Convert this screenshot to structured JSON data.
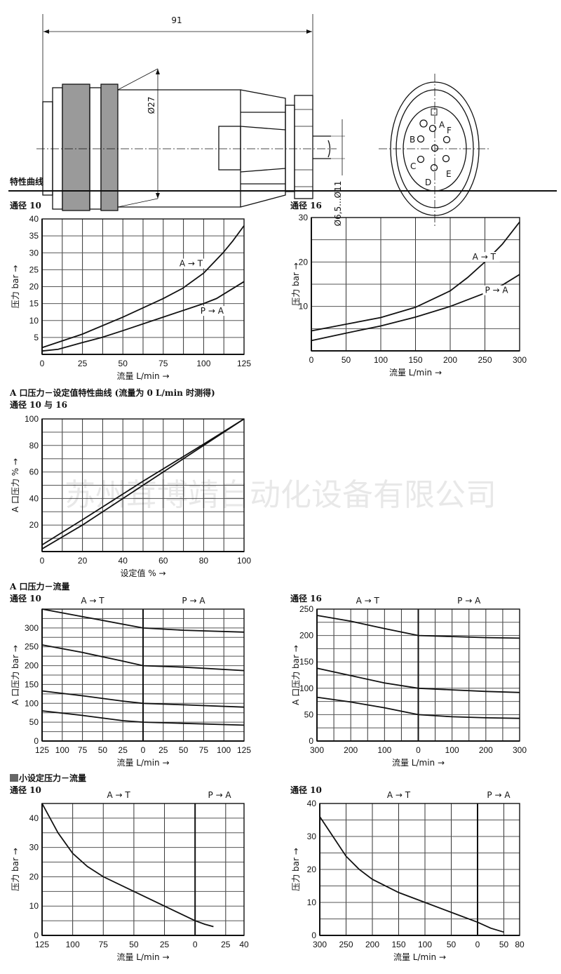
{
  "drawing": {
    "length_dim": "91",
    "diameter_dim": "Ø27",
    "cable_dim": "Ø6,5...Ø11",
    "pins": [
      "A",
      "B",
      "C",
      "D",
      "E",
      "F"
    ]
  },
  "section_title": "特性曲线",
  "headings": {
    "chart1": "通径 10",
    "chart2": "通径 16",
    "setpoint_title": "A 口压力－设定值特性曲线 (流量为 0 L/min 时测得)",
    "setpoint_sub": "通径 10 与 16",
    "pressure_flow_title": "A 口压力－流量",
    "chart4": "通径 10",
    "chart5": "通径 16",
    "min_title": "小设定压力－流量",
    "chart6": "通径 10",
    "chart7": "通径 10"
  },
  "watermark": "苏州茸博靖自动化设备有限公司",
  "colors": {
    "line": "#111111",
    "grid": "#333333",
    "watermark": "#cccccc"
  },
  "chart_data": [
    {
      "type": "line",
      "title": "通径 10",
      "xlabel": "流量 L/min →",
      "ylabel": "压力 bar →",
      "xlim": [
        0,
        125
      ],
      "ylim": [
        0,
        40
      ],
      "grid": true,
      "xticks": [
        0,
        25,
        50,
        75,
        100,
        125
      ],
      "xtick_labels": [
        "0",
        "25",
        "50",
        "75",
        "100",
        "125"
      ],
      "yticks": [
        5,
        10,
        15,
        20,
        25,
        30,
        35,
        40
      ],
      "ytick_labels": [
        "5",
        "10",
        "15",
        "20",
        "25",
        "30",
        "35",
        "40"
      ],
      "series": [
        {
          "name": "A → T",
          "x": [
            0,
            25,
            50,
            75,
            87,
            100,
            112,
            118,
            125
          ],
          "y": [
            2,
            6,
            11,
            16.5,
            19.5,
            24,
            30,
            33.5,
            38
          ]
        },
        {
          "name": "P → A",
          "x": [
            0,
            10,
            25,
            37,
            50,
            75,
            100,
            108,
            125
          ],
          "y": [
            1,
            1.5,
            3.5,
            5,
            7,
            11,
            15,
            16.5,
            21.5
          ]
        }
      ]
    },
    {
      "type": "line",
      "title": "通径 16",
      "xlabel": "流量 L/min →",
      "ylabel": "压力 bar →",
      "xlim": [
        0,
        300
      ],
      "ylim": [
        0,
        30
      ],
      "grid": true,
      "xticks": [
        0,
        50,
        100,
        150,
        200,
        250,
        300
      ],
      "xtick_labels": [
        "0",
        "50",
        "100",
        "150",
        "200",
        "250",
        "300"
      ],
      "yticks": [
        10,
        20,
        30
      ],
      "ytick_labels": [
        "10",
        "20",
        "30"
      ],
      "series": [
        {
          "name": "A → T",
          "x": [
            0,
            50,
            100,
            150,
            200,
            225,
            250,
            275,
            300
          ],
          "y": [
            4.5,
            6,
            7.5,
            9.8,
            13.5,
            16.5,
            20,
            24,
            29
          ]
        },
        {
          "name": "P → A",
          "x": [
            0,
            50,
            100,
            150,
            200,
            250,
            275,
            300
          ],
          "y": [
            2.3,
            4,
            5.6,
            7.6,
            10,
            13,
            14.8,
            17.2
          ]
        }
      ]
    },
    {
      "type": "line",
      "title": "A 口压力－设定值特性曲线 (流量为 0 L/min 时测得)",
      "xlabel": "设定值 % →",
      "ylabel": "A 口压力 % →",
      "xlim": [
        0,
        100
      ],
      "ylim": [
        0,
        100
      ],
      "grid": true,
      "xticks": [
        0,
        20,
        40,
        60,
        80,
        100
      ],
      "xtick_labels": [
        "0",
        "20",
        "40",
        "60",
        "80",
        "100"
      ],
      "yticks": [
        20,
        40,
        60,
        80,
        100
      ],
      "ytick_labels": [
        "20",
        "40",
        "60",
        "80",
        "100"
      ],
      "series": [
        {
          "x": [
            0,
            20,
            50,
            80,
            100
          ],
          "y": [
            5,
            24,
            53,
            81,
            100
          ]
        },
        {
          "x": [
            0,
            20,
            50,
            80,
            100
          ],
          "y": [
            2,
            20,
            50,
            80,
            100
          ]
        }
      ]
    },
    {
      "type": "line",
      "title": "通径 10",
      "xlabel": "流量 L/min →",
      "ylabel": "A 口压力 bar →",
      "regions": [
        "A → T",
        "P → A"
      ],
      "xlim": [
        -125,
        125
      ],
      "ylim": [
        0,
        350
      ],
      "grid": true,
      "xticks": [
        -125,
        -100,
        -75,
        -50,
        -25,
        0,
        25,
        50,
        75,
        100,
        125
      ],
      "xtick_labels": [
        "125",
        "100",
        "75",
        "50",
        "25",
        "0",
        "25",
        "50",
        "75",
        "100",
        "125"
      ],
      "yticks": [
        0,
        50,
        100,
        150,
        200,
        250,
        300
      ],
      "ytick_labels": [
        "0",
        "50",
        "100",
        "150",
        "200",
        "250",
        "300"
      ],
      "series": [
        {
          "x": [
            -125,
            -75,
            -25,
            0,
            50,
            125
          ],
          "y": [
            350,
            330,
            310,
            300,
            294,
            289
          ]
        },
        {
          "x": [
            -125,
            -75,
            -25,
            0,
            50,
            125
          ],
          "y": [
            255,
            235,
            212,
            200,
            196,
            187
          ]
        },
        {
          "x": [
            -125,
            -75,
            -25,
            0,
            50,
            125
          ],
          "y": [
            133,
            120,
            106,
            100,
            96,
            90
          ]
        },
        {
          "x": [
            -125,
            -75,
            -25,
            0,
            50,
            125
          ],
          "y": [
            80,
            68,
            54,
            50,
            47,
            42
          ]
        }
      ]
    },
    {
      "type": "line",
      "title": "通径 16",
      "xlabel": "流量 L/min →",
      "ylabel": "A 口压力 bar →",
      "regions": [
        "A → T",
        "P → A"
      ],
      "xlim": [
        -300,
        300
      ],
      "ylim": [
        0,
        250
      ],
      "grid": true,
      "xticks": [
        -300,
        -200,
        -100,
        0,
        100,
        200,
        300
      ],
      "xtick_labels": [
        "300",
        "200",
        "100",
        "0",
        "100",
        "200",
        "300"
      ],
      "yticks": [
        0,
        50,
        100,
        150,
        200,
        250
      ],
      "ytick_labels": [
        "0",
        "50",
        "100",
        "150",
        "200",
        "250"
      ],
      "series": [
        {
          "x": [
            -300,
            -200,
            -100,
            0,
            100,
            200,
            300
          ],
          "y": [
            238,
            227,
            213,
            200,
            198,
            196,
            195
          ]
        },
        {
          "x": [
            -300,
            -200,
            -100,
            0,
            100,
            200,
            300
          ],
          "y": [
            138,
            124,
            110,
            100,
            97,
            94,
            92
          ]
        },
        {
          "x": [
            -300,
            -200,
            -100,
            0,
            100,
            200,
            300
          ],
          "y": [
            83,
            74,
            63,
            50,
            46,
            44,
            43
          ]
        }
      ]
    },
    {
      "type": "line",
      "title": "通径 10",
      "xlabel": "流量 L/min →",
      "ylabel": "压力 bar →",
      "regions": [
        "A → T",
        "P → A"
      ],
      "xlim": [
        -125,
        40
      ],
      "ylim": [
        0,
        45
      ],
      "grid": true,
      "xticks": [
        -125,
        -100,
        -75,
        -50,
        -25,
        0,
        25,
        40
      ],
      "xtick_labels": [
        "125",
        "100",
        "75",
        "50",
        "25",
        "0",
        "25",
        "40"
      ],
      "yticks": [
        0,
        10,
        20,
        30,
        40
      ],
      "ytick_labels": [
        "0",
        "10",
        "20",
        "30",
        "40"
      ],
      "series": [
        {
          "x": [
            -125,
            -112,
            -100,
            -88,
            -75,
            -50,
            -25,
            0,
            8,
            15
          ],
          "y": [
            45,
            35,
            28,
            23.5,
            20,
            15,
            10,
            5,
            3.8,
            3
          ]
        }
      ]
    },
    {
      "type": "line",
      "title": "通径 10",
      "xlabel": "流量 L/min →",
      "ylabel": "压力 bar →",
      "regions": [
        "A → T",
        "P → A"
      ],
      "xlim": [
        -300,
        80
      ],
      "ylim": [
        0,
        40
      ],
      "grid": true,
      "xticks": [
        -300,
        -250,
        -200,
        -150,
        -100,
        -50,
        0,
        50,
        80
      ],
      "xtick_labels": [
        "300",
        "250",
        "200",
        "150",
        "100",
        "50",
        "0",
        "50",
        "80"
      ],
      "yticks": [
        0,
        10,
        20,
        30,
        40
      ],
      "ytick_labels": [
        "0",
        "10",
        "20",
        "30",
        "40"
      ],
      "series": [
        {
          "x": [
            -300,
            -275,
            -250,
            -225,
            -200,
            -150,
            -100,
            -50,
            0,
            25,
            50
          ],
          "y": [
            36,
            30,
            24,
            20,
            17,
            13,
            10,
            7,
            4,
            2.2,
            1
          ]
        }
      ]
    }
  ]
}
